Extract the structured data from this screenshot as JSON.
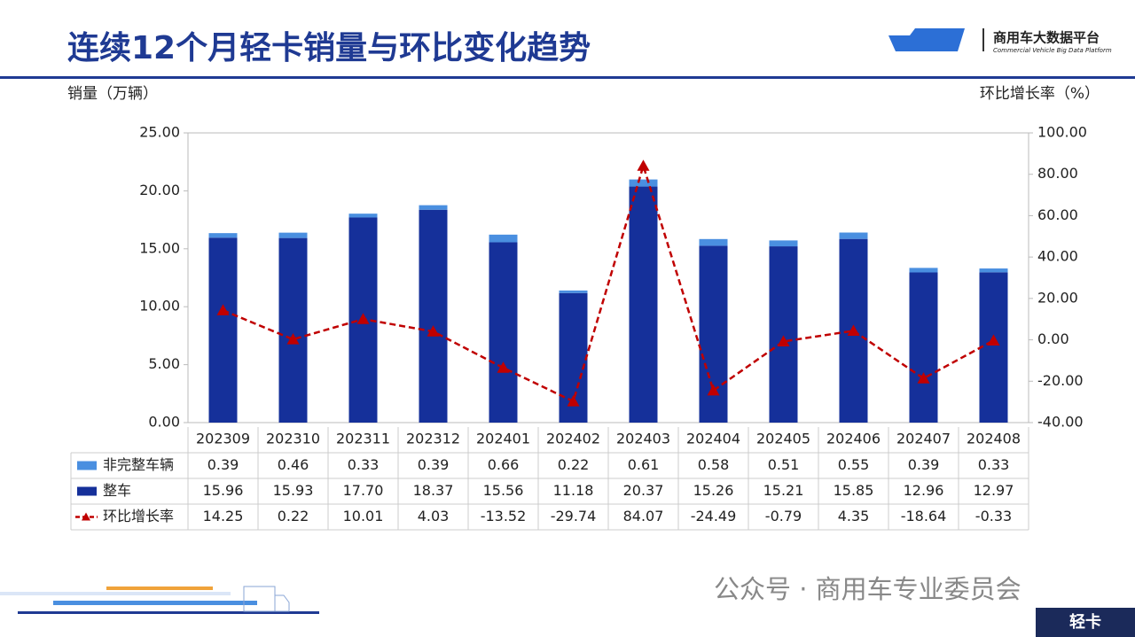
{
  "header": {
    "logo_title": "商用车大数据平台",
    "logo_subtitle": "Commercial Vehicle Big Data Platform"
  },
  "chart_data": {
    "type": "bar",
    "title": "连续12个月轻卡销量与环比变化趋势",
    "y_label": "销量（万辆）",
    "y2_label": "环比增长率（%）",
    "categories": [
      "202309",
      "202310",
      "202311",
      "202312",
      "202401",
      "202402",
      "202403",
      "202404",
      "202405",
      "202406",
      "202407",
      "202408"
    ],
    "series": [
      {
        "name": "非完整车辆",
        "type": "bar",
        "color": "#4a8fe0",
        "values": [
          0.39,
          0.46,
          0.33,
          0.39,
          0.66,
          0.22,
          0.61,
          0.58,
          0.51,
          0.55,
          0.39,
          0.33
        ],
        "value_labels": [
          "0.39",
          "0.46",
          "0.33",
          "0.39",
          "0.66",
          "0.22",
          "0.61",
          "0.58",
          "0.51",
          "0.55",
          "0.39",
          "0.33"
        ]
      },
      {
        "name": "整车",
        "type": "bar",
        "color": "#15309a",
        "values": [
          15.96,
          15.93,
          17.7,
          18.37,
          15.56,
          11.18,
          20.37,
          15.26,
          15.21,
          15.85,
          12.96,
          12.97
        ],
        "value_labels": [
          "15.96",
          "15.93",
          "17.70",
          "18.37",
          "15.56",
          "11.18",
          "20.37",
          "15.26",
          "15.21",
          "15.85",
          "12.96",
          "12.97"
        ]
      },
      {
        "name": "环比增长率",
        "type": "line",
        "axis": "y2",
        "color": "#c00000",
        "values": [
          14.25,
          0.22,
          10.01,
          4.03,
          -13.52,
          -29.74,
          84.07,
          -24.49,
          -0.79,
          4.35,
          -18.64,
          -0.33
        ],
        "value_labels": [
          "14.25",
          "0.22",
          "10.01",
          "4.03",
          "-13.52",
          "-29.74",
          "84.07",
          "-24.49",
          "-0.79",
          "4.35",
          "-18.64",
          "-0.33"
        ]
      }
    ],
    "ylim": [
      0,
      25
    ],
    "yticks": [
      {
        "value": 0,
        "label": "0.00"
      },
      {
        "value": 5,
        "label": "5.00"
      },
      {
        "value": 10,
        "label": "10.00"
      },
      {
        "value": 15,
        "label": "15.00"
      },
      {
        "value": 20,
        "label": "20.00"
      },
      {
        "value": 25,
        "label": "25.00"
      }
    ],
    "y2lim": [
      -40,
      100
    ],
    "y2ticks": [
      {
        "value": -40,
        "label": "-40.00"
      },
      {
        "value": -20,
        "label": "-20.00"
      },
      {
        "value": 0,
        "label": "0.00"
      },
      {
        "value": 20,
        "label": "20.00"
      },
      {
        "value": 40,
        "label": "40.00"
      },
      {
        "value": 60,
        "label": "60.00"
      },
      {
        "value": 80,
        "label": "80.00"
      },
      {
        "value": 100,
        "label": "100.00"
      }
    ],
    "grid": false
  },
  "footer": {
    "account": "公众号 · 商用车专业委员会",
    "badge": "轻卡"
  }
}
